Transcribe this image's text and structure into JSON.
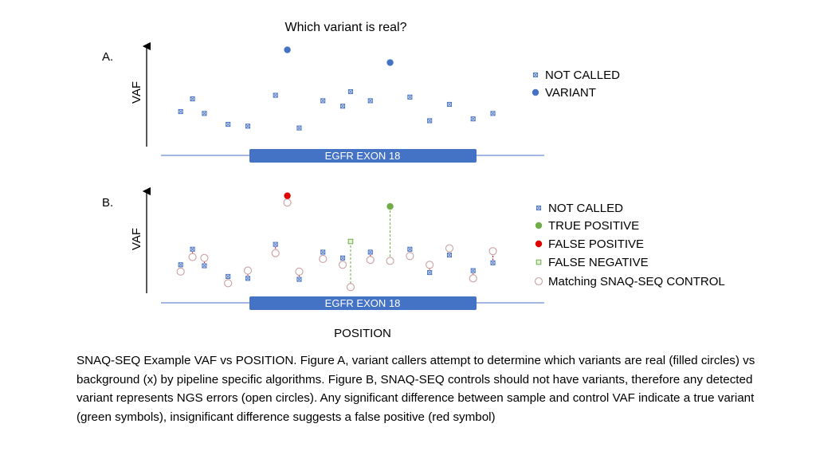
{
  "title": "Which variant is real?",
  "caption": "SNAQ-SEQ Example VAF vs POSITION.  Figure A, variant callers attempt to determine which variants are real (filled circles) vs background (x) by pipeline specific algorithms.  Figure B, SNAQ-SEQ controls should not have variants, therefore any detected variant represents NGS errors (open circles).  Any significant difference between sample and control VAF indicate a true variant (green symbols), insignificant difference suggests a false positive (red symbol)",
  "xlabel": "POSITION",
  "colors": {
    "not_called_fill": "#d6dcf0",
    "not_called_stroke": "#4472c4",
    "variant": "#4472c4",
    "true_positive": "#70ad47",
    "false_positive": "#e00000",
    "false_negative_fill": "#e2efd9",
    "false_negative_stroke": "#70ad47",
    "control_stroke": "#c9a0a0",
    "exon_bar": "#4472c4",
    "axis_line": "#4472c4"
  },
  "chart_data": [
    {
      "panel_label": "A.",
      "type": "scatter",
      "ylabel": "VAF",
      "exon_label": "EGFR EXON 18",
      "x_range": [
        0,
        100
      ],
      "y_range": [
        0,
        100
      ],
      "legend": [
        "NOT CALLED",
        "VARIANT"
      ],
      "legend_placement": "right",
      "series": [
        {
          "name": "NOT CALLED",
          "marker": "square-x",
          "points": [
            [
              8,
              28
            ],
            [
              11,
              42
            ],
            [
              14,
              26
            ],
            [
              20,
              14
            ],
            [
              25,
              12
            ],
            [
              32,
              46
            ],
            [
              38,
              10
            ],
            [
              44,
              40
            ],
            [
              49,
              34
            ],
            [
              51,
              50
            ],
            [
              56,
              40
            ],
            [
              66,
              44
            ],
            [
              71,
              18
            ],
            [
              76,
              36
            ],
            [
              82,
              20
            ],
            [
              87,
              26
            ]
          ]
        },
        {
          "name": "VARIANT",
          "marker": "circle",
          "points": [
            [
              35,
              96
            ],
            [
              61,
              82
            ]
          ]
        }
      ]
    },
    {
      "panel_label": "B.",
      "type": "scatter",
      "ylabel": "VAF",
      "exon_label": "EGFR EXON 18",
      "x_range": [
        0,
        100
      ],
      "y_range": [
        0,
        100
      ],
      "legend": [
        "NOT CALLED",
        "TRUE POSITIVE",
        "FALSE POSITIVE",
        "FALSE NEGATIVE",
        "Matching SNAQ-SEQ CONTROL"
      ],
      "legend_placement": "right",
      "pairs": [
        {
          "x": 8,
          "sample": 26,
          "control": 19,
          "kind": "not_called"
        },
        {
          "x": 11,
          "sample": 42,
          "control": 34,
          "kind": "not_called"
        },
        {
          "x": 14,
          "sample": 25,
          "control": 33,
          "kind": "not_called"
        },
        {
          "x": 20,
          "sample": 14,
          "control": 7,
          "kind": "not_called"
        },
        {
          "x": 25,
          "sample": 12,
          "control": 20,
          "kind": "not_called"
        },
        {
          "x": 32,
          "sample": 47,
          "control": 38,
          "kind": "not_called"
        },
        {
          "x": 35,
          "sample": 97,
          "control": 90,
          "kind": "false_positive"
        },
        {
          "x": 38,
          "sample": 11,
          "control": 19,
          "kind": "not_called"
        },
        {
          "x": 44,
          "sample": 39,
          "control": 32,
          "kind": "not_called"
        },
        {
          "x": 49,
          "sample": 33,
          "control": 26,
          "kind": "not_called"
        },
        {
          "x": 51,
          "sample": 50,
          "control": 3,
          "kind": "false_negative"
        },
        {
          "x": 56,
          "sample": 39,
          "control": 31,
          "kind": "not_called"
        },
        {
          "x": 61,
          "sample": 86,
          "control": 30,
          "kind": "true_positive"
        },
        {
          "x": 66,
          "sample": 42,
          "control": 35,
          "kind": "not_called"
        },
        {
          "x": 71,
          "sample": 18,
          "control": 26,
          "kind": "not_called"
        },
        {
          "x": 76,
          "sample": 36,
          "control": 43,
          "kind": "not_called"
        },
        {
          "x": 82,
          "sample": 20,
          "control": 12,
          "kind": "not_called"
        },
        {
          "x": 87,
          "sample": 28,
          "control": 40,
          "kind": "not_called"
        }
      ]
    }
  ]
}
